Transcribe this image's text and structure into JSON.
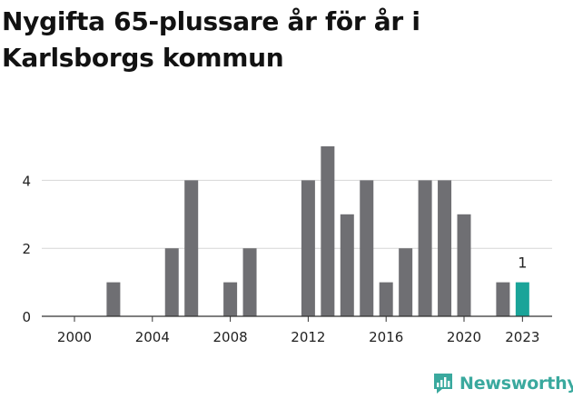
{
  "title": "Nygifta 65-plussare år för år i Karlsborgs kommun",
  "brand": {
    "name": "Newsworthy",
    "icon": "newsworthy-logo-icon",
    "color": "#3aa99e"
  },
  "chart_data": {
    "type": "bar",
    "title": "Nygifta 65-plussare år för år i Karlsborgs kommun",
    "xlabel": "",
    "ylabel": "",
    "x": [
      2000,
      2001,
      2002,
      2003,
      2004,
      2005,
      2006,
      2007,
      2008,
      2009,
      2010,
      2011,
      2012,
      2013,
      2014,
      2015,
      2016,
      2017,
      2018,
      2019,
      2020,
      2021,
      2022,
      2023
    ],
    "values": [
      0,
      0,
      1,
      0,
      0,
      2,
      4,
      0,
      1,
      2,
      0,
      0,
      4,
      5,
      3,
      4,
      1,
      2,
      4,
      4,
      3,
      0,
      1,
      1
    ],
    "x_ticks": [
      "2000",
      "2004",
      "2008",
      "2012",
      "2016",
      "2020",
      "2023"
    ],
    "y_ticks": [
      "0",
      "2",
      "4"
    ],
    "ylim": [
      0,
      5
    ],
    "grid": true,
    "bar_color": "#6f6f73",
    "highlight": {
      "x": 2023,
      "color": "#1aa499",
      "label": "1"
    }
  }
}
